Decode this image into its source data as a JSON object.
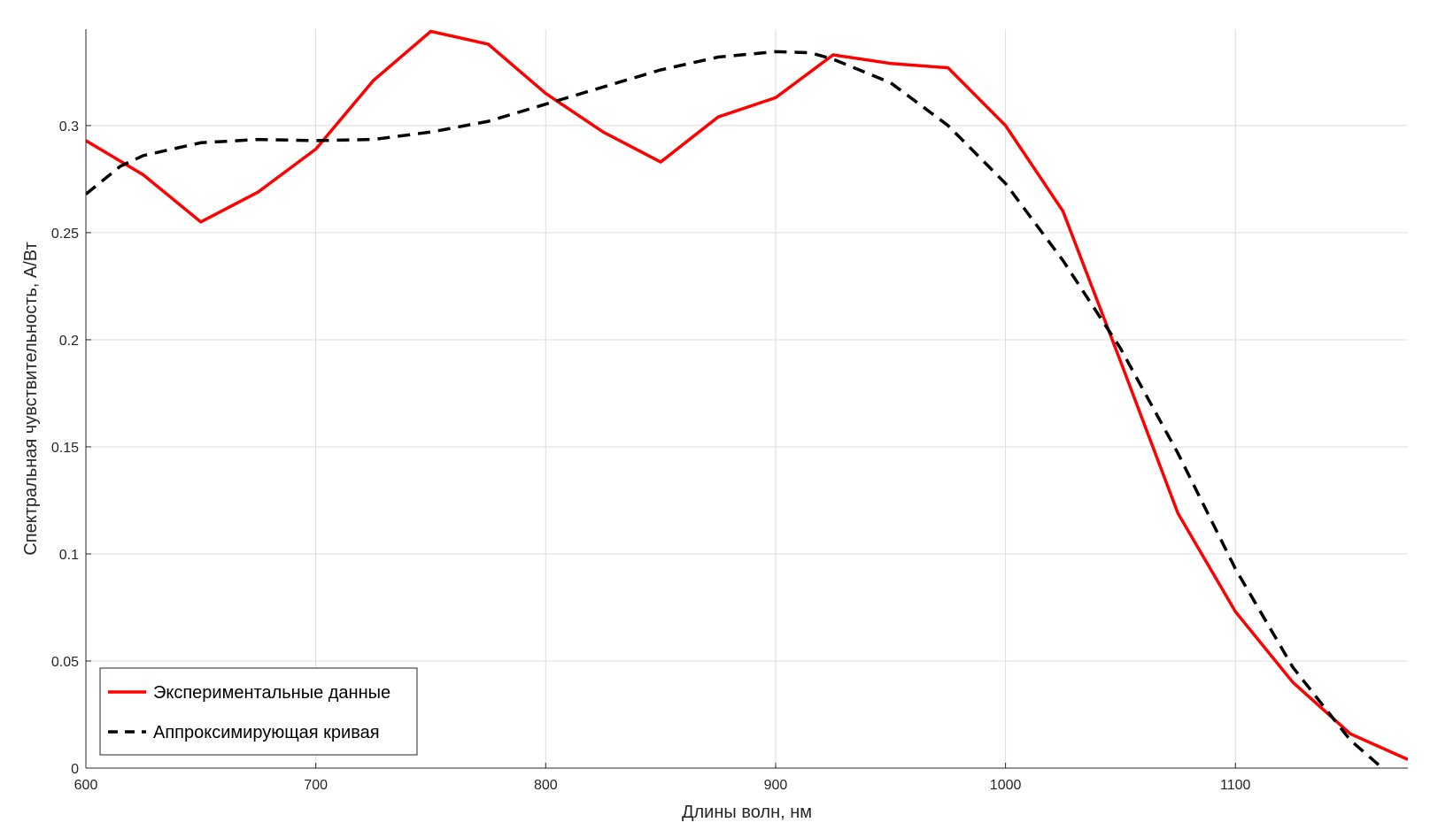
{
  "chart_data": {
    "type": "line",
    "title": "",
    "xlabel": "Длины волн, нм",
    "ylabel": "Спектральная чувствительность, А/Вт",
    "xlim": [
      600,
      1175
    ],
    "ylim": [
      0,
      0.345
    ],
    "xticks": [
      600,
      700,
      800,
      900,
      1000,
      1100
    ],
    "xtick_labels": [
      "600",
      "700",
      "800",
      "900",
      "1000",
      "1100"
    ],
    "yticks": [
      0,
      0.05,
      0.1,
      0.15,
      0.2,
      0.25,
      0.3
    ],
    "ytick_labels": [
      "0",
      "0.05",
      "0.1",
      "0.15",
      "0.2",
      "0.25",
      "0.3"
    ],
    "grid": true,
    "legend_position": "bottom-left",
    "series": [
      {
        "name": "Экспериментальные данные",
        "color": "#ff0000",
        "style": "solid",
        "x": [
          600,
          625,
          650,
          675,
          700,
          725,
          750,
          775,
          800,
          825,
          850,
          875,
          900,
          925,
          950,
          975,
          1000,
          1025,
          1050,
          1075,
          1100,
          1125,
          1150,
          1175
        ],
        "y": [
          0.293,
          0.277,
          0.255,
          0.269,
          0.289,
          0.321,
          0.344,
          0.338,
          0.315,
          0.297,
          0.283,
          0.304,
          0.313,
          0.333,
          0.329,
          0.327,
          0.3,
          0.26,
          0.19,
          0.119,
          0.073,
          0.04,
          0.016,
          0.004
        ]
      },
      {
        "name": "Аппроксимирующая кривая",
        "color": "#000000",
        "style": "dashed",
        "x": [
          600,
          615,
          625,
          650,
          675,
          700,
          725,
          750,
          775,
          800,
          825,
          850,
          875,
          900,
          915,
          925,
          950,
          975,
          1000,
          1025,
          1050,
          1075,
          1100,
          1125,
          1150,
          1165
        ],
        "y": [
          0.268,
          0.281,
          0.286,
          0.292,
          0.2935,
          0.293,
          0.2935,
          0.297,
          0.302,
          0.31,
          0.318,
          0.326,
          0.332,
          0.3345,
          0.334,
          0.331,
          0.32,
          0.3,
          0.273,
          0.237,
          0.196,
          0.147,
          0.093,
          0.047,
          0.013,
          -0.001
        ]
      }
    ]
  }
}
